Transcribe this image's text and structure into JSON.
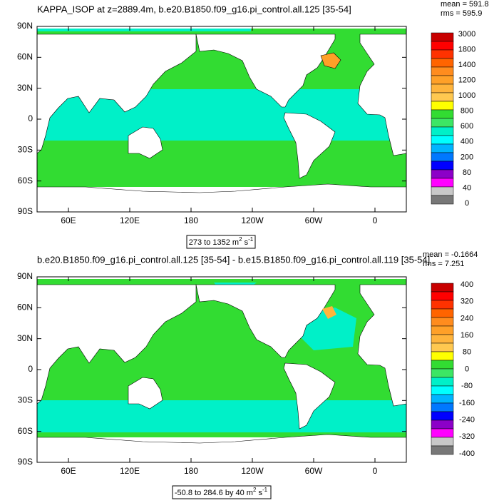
{
  "palette": [
    "#c80000",
    "#ff0000",
    "#ff3200",
    "#ff6400",
    "#ff8c1e",
    "#ffa028",
    "#ffb43c",
    "#ffc850",
    "#ffff00",
    "#32dc32",
    "#3ce664",
    "#00f0c8",
    "#00ffff",
    "#00b4ff",
    "#0078ff",
    "#0000ff",
    "#8c00c8",
    "#ff00ff",
    "#c8c8c8",
    "#787878"
  ],
  "panels": [
    {
      "title": "KAPPA_ISOP at z=2889.4m, b.e20.B1850.f09_g16.pi_control.all.125 [35-54]",
      "stats": [
        "mean = 591.8",
        "rms = 595.9"
      ],
      "range": {
        "text": "273 to 1352 m",
        "sq": "2",
        "unit": " s",
        "exp": "-1"
      },
      "lat_labels": [
        "90N",
        "60N",
        "30N",
        "0",
        "30S",
        "60S",
        "90S"
      ],
      "lon_labels": [
        "60E",
        "120E",
        "180",
        "120W",
        "60W",
        "0"
      ],
      "levels": [
        "3000",
        "1800",
        "1400",
        "1200",
        "1000",
        "800",
        "600",
        "400",
        "200",
        "80",
        "40",
        "0"
      ]
    },
    {
      "title": "b.e20.B1850.f09_g16.pi_control.all.125 [35-54] - b.e15.B1850.f09_g16.pi_control.all.119 [35-54]",
      "stats": [
        "mean = -0.1664",
        "rms = 7.251"
      ],
      "range": {
        "text": "-50.8 to 284.6 by 40 m",
        "sq": "2",
        "unit": " s",
        "exp": "-1"
      },
      "lat_labels": [
        "90N",
        "60N",
        "30N",
        "0",
        "30S",
        "60S",
        "90S"
      ],
      "lon_labels": [
        "60E",
        "120E",
        "180",
        "120W",
        "60W",
        "0"
      ],
      "levels": [
        "400",
        "320",
        "240",
        "160",
        "80",
        "0",
        "-80",
        "-160",
        "-240",
        "-320",
        "-400"
      ]
    }
  ]
}
